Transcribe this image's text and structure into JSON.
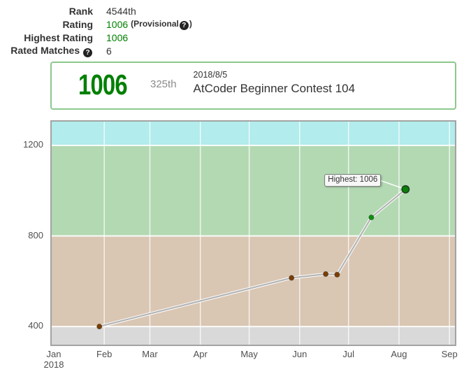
{
  "stats": {
    "rank": {
      "label": "Rank",
      "value": "4544th"
    },
    "rating": {
      "label": "Rating",
      "value": "1006",
      "qualifier_open": "(Provisional",
      "qualifier_close": ")"
    },
    "highest": {
      "label": "Highest Rating",
      "value": "1006"
    },
    "matches": {
      "label": "Rated Matches",
      "value": "6"
    }
  },
  "highlight": {
    "rating": "1006",
    "place": "325th",
    "date": "2018/8/5",
    "contest": "AtCoder Beginner Contest 104"
  },
  "chart_data": {
    "type": "line",
    "x_unit": "day of 2018",
    "x_ticks": [
      {
        "label": "Jan",
        "sublabel": "2018",
        "day": 0
      },
      {
        "label": "Feb",
        "day": 31
      },
      {
        "label": "Mar",
        "day": 59
      },
      {
        "label": "Apr",
        "day": 90
      },
      {
        "label": "May",
        "day": 120
      },
      {
        "label": "Jun",
        "day": 151
      },
      {
        "label": "Jul",
        "day": 181
      },
      {
        "label": "Aug",
        "day": 212
      },
      {
        "label": "Sep",
        "day": 243
      }
    ],
    "y_ticks": [
      400,
      800,
      1200
    ],
    "y_visible_range": [
      320,
      1305
    ],
    "bands": [
      {
        "from": 320,
        "to": 400,
        "color": "#d9d9d9"
      },
      {
        "from": 400,
        "to": 800,
        "color": "#d9c6b3"
      },
      {
        "from": 800,
        "to": 1200,
        "color": "#b3d9b3"
      },
      {
        "from": 1200,
        "to": 1305,
        "color": "#b2ecec"
      }
    ],
    "points": [
      {
        "day": 28,
        "approx_date": "2018-01-28",
        "rating": 400,
        "color": "#7b3e00"
      },
      {
        "day": 146,
        "approx_date": "2018-05-27",
        "rating": 615,
        "color": "#7b3e00"
      },
      {
        "day": 167,
        "approx_date": "2018-06-17",
        "rating": 632,
        "color": "#7b3e00"
      },
      {
        "day": 174,
        "approx_date": "2018-06-24",
        "rating": 629,
        "color": "#7b3e00"
      },
      {
        "day": 195,
        "approx_date": "2018-07-15",
        "rating": 882,
        "color": "#0f8f0f"
      },
      {
        "day": 216,
        "approx_date": "2018-08-05",
        "rating": 1006,
        "color": "#0b7e0b",
        "highest": true
      }
    ],
    "tooltip": "Highest: 1006",
    "line_color": "#b4b4b4"
  }
}
